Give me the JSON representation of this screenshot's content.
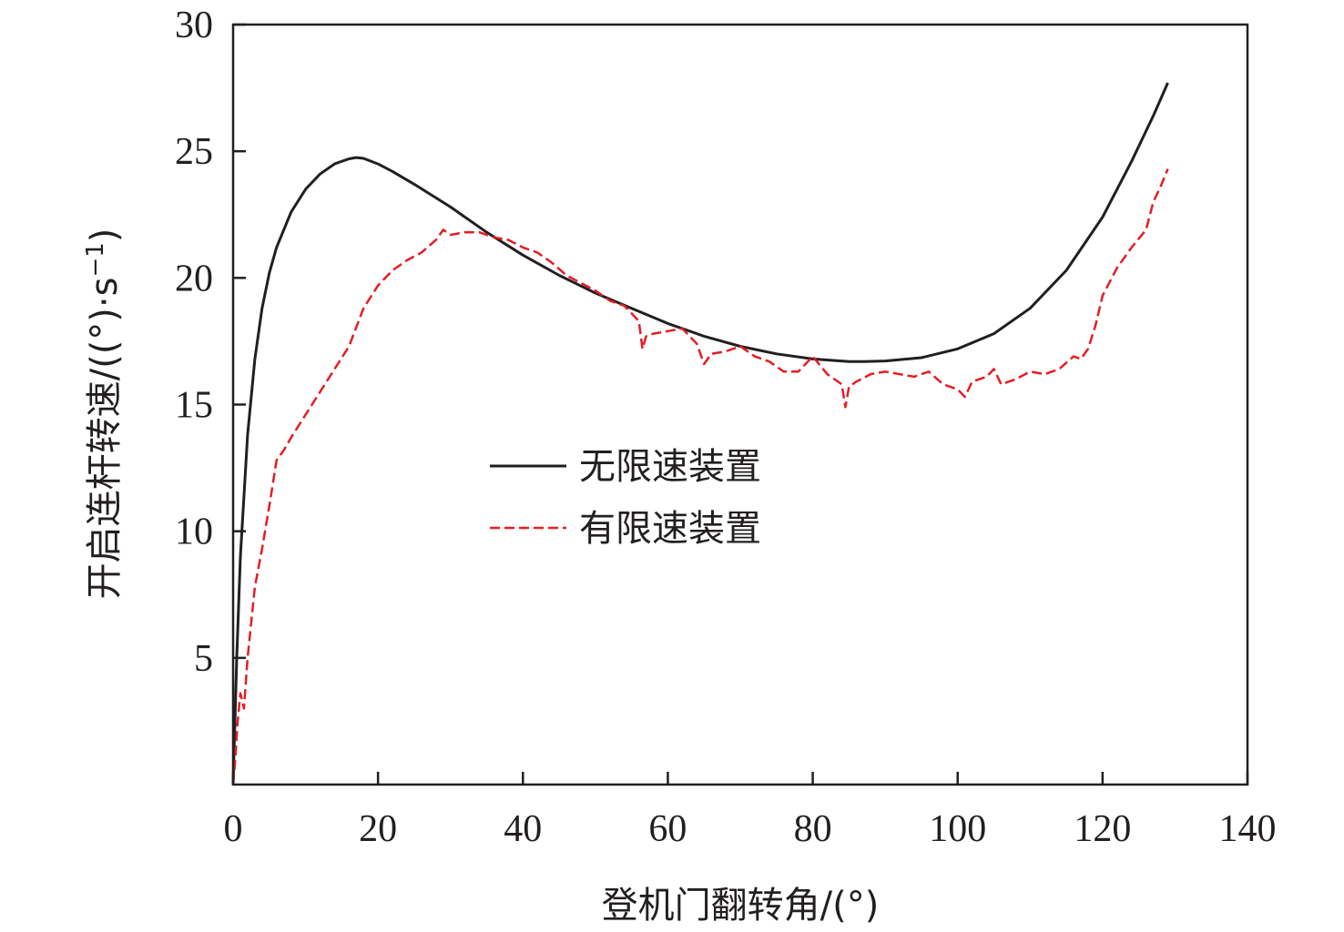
{
  "chart_data": {
    "type": "line",
    "title": "",
    "xlabel": "登机门翻转角/(°)",
    "ylabel": {
      "text": "开启连杆转速/((°)·s",
      "superscript": "−1",
      "suffix": ")"
    },
    "xlim": [
      0,
      140
    ],
    "ylim": [
      0,
      30
    ],
    "x_ticks": [
      0,
      20,
      40,
      60,
      80,
      100,
      120,
      140
    ],
    "y_ticks": [
      5,
      10,
      15,
      20,
      25,
      30
    ],
    "x_tick_labels": [
      "0",
      "20",
      "40",
      "60",
      "80",
      "100",
      "120",
      "140"
    ],
    "y_tick_labels": [
      "5",
      "10",
      "15",
      "20",
      "25",
      "30"
    ],
    "grid": false,
    "legend_position": "center-left",
    "series": [
      {
        "name": "无限速装置",
        "color": "#231f20",
        "style": "solid",
        "x": [
          0,
          0.5,
          1,
          2,
          3,
          4,
          5,
          6,
          8,
          10,
          12,
          14,
          16,
          17,
          18,
          20,
          22,
          25,
          30,
          35,
          40,
          45,
          50,
          55,
          60,
          65,
          70,
          75,
          80,
          85,
          87,
          90,
          95,
          100,
          105,
          110,
          115,
          120,
          124,
          127,
          129
        ],
        "y": [
          0,
          5.0,
          9.0,
          13.8,
          16.8,
          18.8,
          20.2,
          21.2,
          22.6,
          23.5,
          24.1,
          24.5,
          24.7,
          24.75,
          24.72,
          24.5,
          24.2,
          23.7,
          22.8,
          21.8,
          20.9,
          20.1,
          19.4,
          18.8,
          18.2,
          17.7,
          17.3,
          17.0,
          16.8,
          16.7,
          16.7,
          16.72,
          16.85,
          17.2,
          17.8,
          18.8,
          20.3,
          22.4,
          24.6,
          26.4,
          27.7
        ]
      },
      {
        "name": "有限速装置",
        "color": "#e31e24",
        "style": "dashed",
        "x": [
          0,
          0.3,
          0.6,
          1,
          1.5,
          2,
          3,
          4,
          5,
          6,
          7,
          8,
          10,
          12,
          14,
          16,
          18,
          20,
          22,
          24,
          26,
          28,
          29,
          30,
          32,
          34,
          36,
          38,
          40,
          42,
          44,
          46,
          48,
          50,
          52,
          54,
          56,
          56.5,
          57,
          58,
          60,
          62,
          64,
          65,
          66,
          68,
          70,
          72,
          74,
          76,
          78,
          80,
          82,
          84,
          84.5,
          85,
          86,
          88,
          90,
          92,
          94,
          96,
          98,
          100,
          101,
          102,
          104,
          105,
          106,
          108,
          110,
          112,
          114,
          116,
          117,
          118,
          119,
          120,
          122,
          124,
          126,
          127,
          128,
          129
        ],
        "y": [
          0,
          1.0,
          2.4,
          3.6,
          3.0,
          5.0,
          7.8,
          9.3,
          11.0,
          12.8,
          13.2,
          13.7,
          14.6,
          15.5,
          16.4,
          17.3,
          18.8,
          19.7,
          20.3,
          20.7,
          21.0,
          21.5,
          21.9,
          21.7,
          21.8,
          21.8,
          21.6,
          21.5,
          21.2,
          21.0,
          20.6,
          20.1,
          19.8,
          19.5,
          19.1,
          18.9,
          18.3,
          17.2,
          17.7,
          17.8,
          17.9,
          18.0,
          17.4,
          16.6,
          17.0,
          17.1,
          17.3,
          16.9,
          16.7,
          16.3,
          16.3,
          16.9,
          16.2,
          15.8,
          14.9,
          15.7,
          15.9,
          16.2,
          16.3,
          16.2,
          16.1,
          16.3,
          15.8,
          15.6,
          15.3,
          15.9,
          16.1,
          16.4,
          15.8,
          16.0,
          16.3,
          16.2,
          16.4,
          16.9,
          16.8,
          17.2,
          18.1,
          19.3,
          20.4,
          21.2,
          21.9,
          23.0,
          23.6,
          24.3
        ]
      }
    ]
  }
}
